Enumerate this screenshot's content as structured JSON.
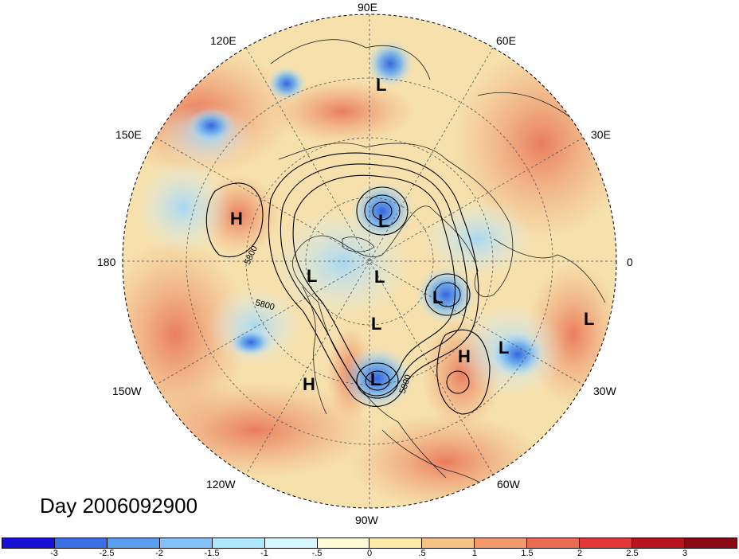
{
  "map": {
    "longitude_labels": [
      {
        "text": "90E"
      },
      {
        "text": "60E"
      },
      {
        "text": "120E"
      },
      {
        "text": "30E"
      },
      {
        "text": "150E"
      },
      {
        "text": "180"
      },
      {
        "text": "0"
      },
      {
        "text": "150W"
      },
      {
        "text": "30W"
      },
      {
        "text": "120W"
      },
      {
        "text": "60W"
      },
      {
        "text": "90W"
      }
    ],
    "pressure_systems": [
      "L",
      "L",
      "H",
      "L",
      "L",
      "L",
      "L",
      "L",
      "L",
      "L",
      "H",
      "H"
    ],
    "contour_labels": [
      "5800",
      "5800",
      "5800"
    ],
    "colors": {
      "ocean_base": "#f6e4b4",
      "land_base": "#f0c890",
      "warm_anomaly": "#ea8a60",
      "cold_anomaly": "#6aaef0",
      "contour": "#000000"
    }
  },
  "title": "Day 2006092900",
  "colorbar": {
    "colors": [
      "#1a0fd6",
      "#3a6fe6",
      "#5a9ef0",
      "#83c2f8",
      "#aee8fc",
      "#d7f8fe",
      "#fffbd4",
      "#fbeaa8",
      "#f7c384",
      "#f29a6a",
      "#eb6a52",
      "#e43838",
      "#b8141e",
      "#8c0a16"
    ],
    "tick_labels": [
      "-3",
      "-2.5",
      "-2",
      "-1.5",
      "-1",
      "-.5",
      "0",
      ".5",
      "1",
      "1.5",
      "2",
      "2.5",
      "3"
    ]
  }
}
